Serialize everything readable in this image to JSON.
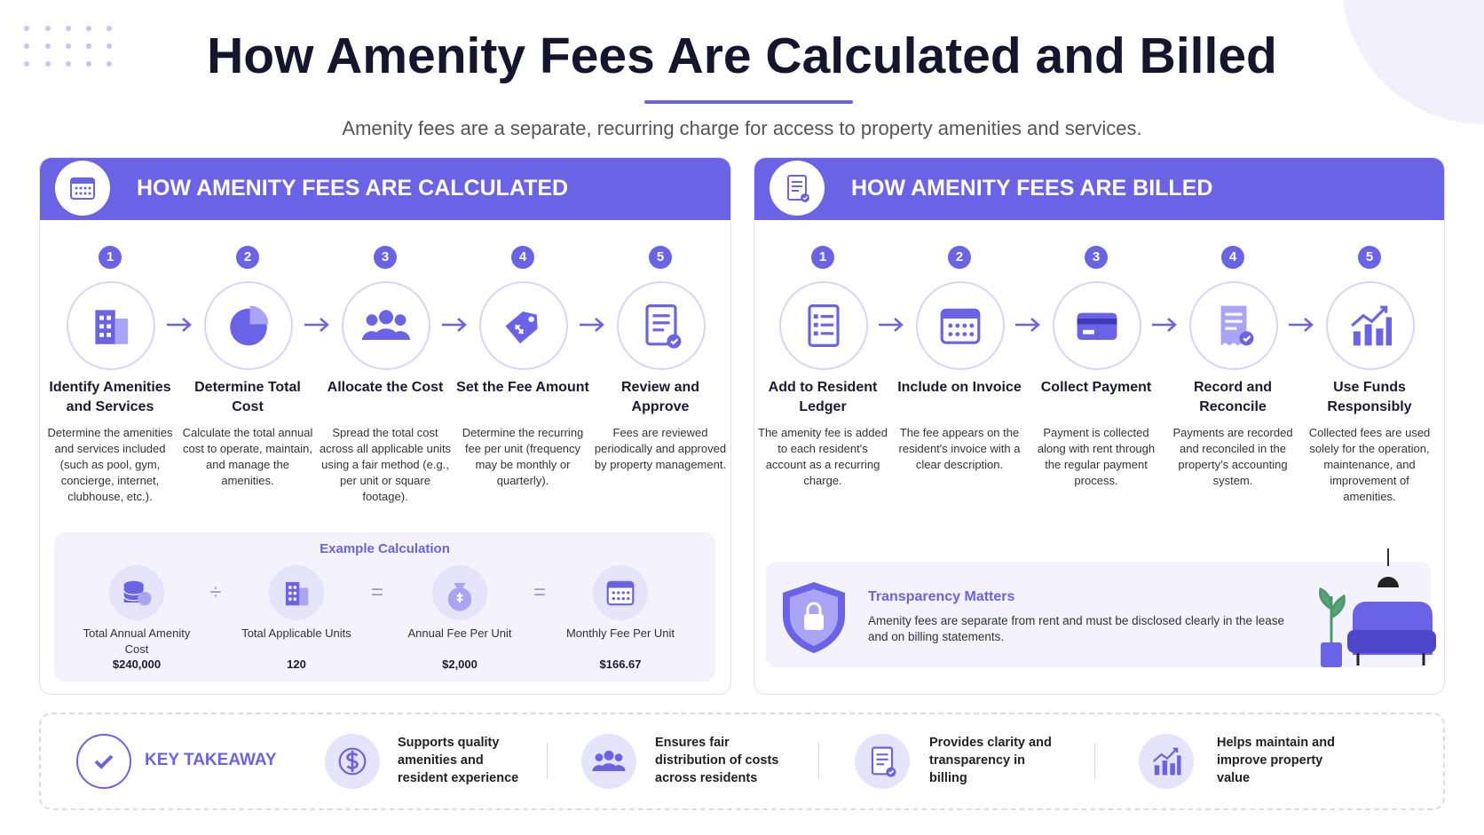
{
  "header": {
    "title": "How Amenity Fees Are Calculated and Billed",
    "subtitle": "Amenity fees are a separate, recurring charge for access to property amenities and services."
  },
  "panels": [
    {
      "title": "HOW AMENITY FEES ARE CALCULATED",
      "steps": [
        {
          "number": 1,
          "title": "Identify Amenities and Services",
          "description": "Determine the amenities and services included (such as pool, gym, concierge, internet, clubhouse, etc.)."
        },
        {
          "number": 2,
          "title": "Determine Total Cost",
          "description": "Calculate the total annual cost to operate, maintain, and manage the amenities."
        },
        {
          "number": 3,
          "title": "Allocate the Cost",
          "description": "Spread the total cost across all applicable units using a fair method (e.g., per unit or square footage)."
        },
        {
          "number": 4,
          "title": "Set the Fee Amount",
          "description": "Determine the recurring fee per unit (frequency may be monthly or quarterly)."
        },
        {
          "number": 5,
          "title": "Review and Approve",
          "description": "Fees are reviewed periodically and approved by property management."
        }
      ]
    },
    {
      "title": "HOW AMENITY FEES ARE BILLED",
      "steps": [
        {
          "number": 1,
          "title": "Add to Resident Ledger",
          "description": "The amenity fee is added to each resident's account as a recurring charge."
        },
        {
          "number": 2,
          "title": "Include on Invoice",
          "description": "The fee appears on the resident's invoice with a clear description."
        },
        {
          "number": 3,
          "title": "Collect Payment",
          "description": "Payment is collected along with rent through the regular payment process."
        },
        {
          "number": 4,
          "title": "Record and Reconcile",
          "description": "Payments are recorded and reconciled in the property's accounting system."
        },
        {
          "number": 5,
          "title": "Use Funds Responsibly",
          "description": "Collected fees are used solely for the operation, maintenance, and improvement of amenities."
        }
      ]
    }
  ],
  "example": {
    "title": "Example Calculation",
    "items": [
      {
        "label": "Total Annual Amenity Cost",
        "value": "$240,000"
      },
      {
        "label": "Total Applicable Units",
        "value": "120"
      },
      {
        "label": "Annual Fee Per Unit",
        "value": "$2,000"
      },
      {
        "label": "Monthly Fee Per Unit",
        "value": "$166.67"
      }
    ],
    "operators": [
      "÷",
      "=",
      "="
    ]
  },
  "note": {
    "title": "Transparency Matters",
    "text": "Amenity fees are separate from rent and must be disclosed clearly in the lease and on billing statements."
  },
  "takeaway": {
    "title": "KEY TAKEAWAY",
    "items": [
      "Supports quality amenities and resident experience",
      "Ensures fair distribution of costs across residents",
      "Provides clarity and transparency in billing",
      "Helps maintain and improve property value"
    ]
  }
}
